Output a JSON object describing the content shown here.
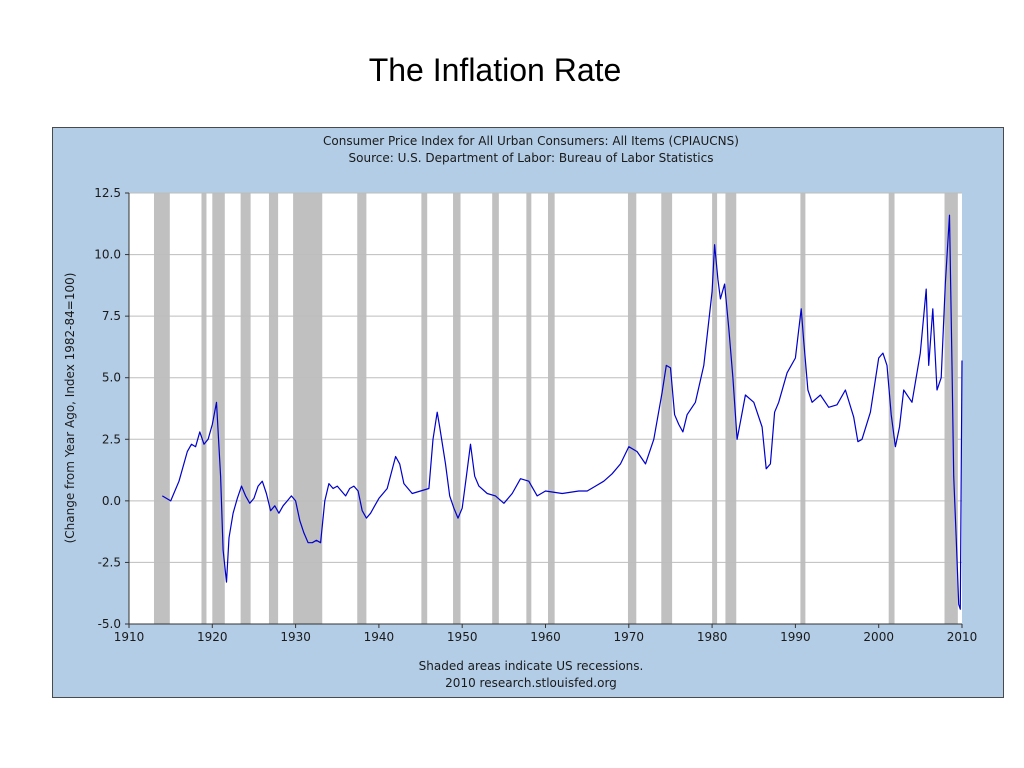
{
  "slide": {
    "title": "The Inflation Rate"
  },
  "chart_data": {
    "type": "line",
    "title": "Consumer Price Index for All Urban Consumers: All Items (CPIAUCNS)",
    "subtitle": "Source: U.S. Department of Labor: Bureau of Labor Statistics",
    "xlabel": "",
    "ylabel": "(Change from Year Ago, Index 1982-84=100)",
    "xlim": [
      1910,
      2010
    ],
    "ylim": [
      -5.0,
      12.5
    ],
    "x_ticks": [
      "1910",
      "1920",
      "1930",
      "1940",
      "1950",
      "1960",
      "1970",
      "1980",
      "1990",
      "2000",
      "2010"
    ],
    "y_ticks": [
      "-5.0",
      "-2.5",
      "0.0",
      "2.5",
      "5.0",
      "7.5",
      "10.0",
      "12.5"
    ],
    "grid": "horizontal",
    "footer_lines": [
      "Shaded areas indicate US recessions.",
      "2010 research.stlouisfed.org"
    ],
    "recessions": [
      [
        1913.0,
        1914.9
      ],
      [
        1918.7,
        1919.3
      ],
      [
        1920.0,
        1921.5
      ],
      [
        1923.4,
        1924.6
      ],
      [
        1926.8,
        1927.9
      ],
      [
        1929.7,
        1933.2
      ],
      [
        1937.4,
        1938.5
      ],
      [
        1945.1,
        1945.8
      ],
      [
        1948.9,
        1949.8
      ],
      [
        1953.6,
        1954.4
      ],
      [
        1957.7,
        1958.3
      ],
      [
        1960.3,
        1961.1
      ],
      [
        1969.9,
        1970.9
      ],
      [
        1973.9,
        1975.2
      ],
      [
        1980.0,
        1980.6
      ],
      [
        1981.6,
        1982.9
      ],
      [
        1990.6,
        1991.2
      ],
      [
        2001.2,
        2001.9
      ],
      [
        2007.9,
        2009.5
      ]
    ],
    "series": [
      {
        "color": "#0000cc",
        "x": [
          1914.0,
          1915.0,
          1916.0,
          1917.0,
          1917.5,
          1918.0,
          1918.5,
          1919.0,
          1919.5,
          1920.0,
          1920.5,
          1921.0,
          1921.3,
          1921.7,
          1922.0,
          1922.5,
          1923.0,
          1923.5,
          1924.0,
          1924.5,
          1925.0,
          1925.5,
          1926.0,
          1926.5,
          1927.0,
          1927.5,
          1928.0,
          1928.5,
          1929.0,
          1929.5,
          1930.0,
          1930.5,
          1931.0,
          1931.5,
          1932.0,
          1932.5,
          1933.0,
          1933.5,
          1934.0,
          1934.5,
          1935.0,
          1935.5,
          1936.0,
          1936.5,
          1937.0,
          1937.5,
          1938.0,
          1938.5,
          1939.0,
          1939.5,
          1940.0,
          1941.0,
          1942.0,
          1942.5,
          1943.0,
          1944.0,
          1945.0,
          1946.0,
          1946.5,
          1947.0,
          1947.3,
          1948.0,
          1948.5,
          1949.0,
          1949.5,
          1950.0,
          1950.5,
          1951.0,
          1951.5,
          1952.0,
          1953.0,
          1954.0,
          1955.0,
          1956.0,
          1957.0,
          1958.0,
          1959.0,
          1960.0,
          1962.0,
          1964.0,
          1965.0,
          1966.0,
          1967.0,
          1968.0,
          1969.0,
          1970.0,
          1971.0,
          1972.0,
          1973.0,
          1974.0,
          1974.5,
          1975.0,
          1975.5,
          1976.0,
          1976.5,
          1977.0,
          1978.0,
          1979.0,
          1980.0,
          1980.3,
          1980.7,
          1981.0,
          1981.5,
          1982.0,
          1982.5,
          1983.0,
          1983.5,
          1984.0,
          1985.0,
          1986.0,
          1986.5,
          1987.0,
          1987.5,
          1988.0,
          1989.0,
          1990.0,
          1990.7,
          1991.0,
          1991.5,
          1992.0,
          1993.0,
          1994.0,
          1995.0,
          1996.0,
          1997.0,
          1997.5,
          1998.0,
          1999.0,
          2000.0,
          2000.5,
          2001.0,
          2001.5,
          2002.0,
          2002.5,
          2003.0,
          2004.0,
          2005.0,
          2005.7,
          2006.0,
          2006.5,
          2007.0,
          2007.5,
          2008.0,
          2008.5,
          2008.8,
          2009.0,
          2009.3,
          2009.6,
          2009.8,
          2010.0
        ],
        "y": [
          0.2,
          0.0,
          0.8,
          2.0,
          2.3,
          2.2,
          2.8,
          2.3,
          2.5,
          3.1,
          4.0,
          1.0,
          -2.0,
          -3.3,
          -1.5,
          -0.5,
          0.1,
          0.6,
          0.2,
          -0.1,
          0.1,
          0.6,
          0.8,
          0.3,
          -0.4,
          -0.2,
          -0.5,
          -0.2,
          0.0,
          0.2,
          0.0,
          -0.8,
          -1.3,
          -1.7,
          -1.7,
          -1.6,
          -1.7,
          0.0,
          0.7,
          0.5,
          0.6,
          0.4,
          0.2,
          0.5,
          0.6,
          0.4,
          -0.4,
          -0.7,
          -0.5,
          -0.2,
          0.1,
          0.5,
          1.8,
          1.5,
          0.7,
          0.3,
          0.4,
          0.5,
          2.5,
          3.6,
          3.0,
          1.5,
          0.2,
          -0.3,
          -0.7,
          -0.3,
          1.0,
          2.3,
          1.0,
          0.6,
          0.3,
          0.2,
          -0.1,
          0.3,
          0.9,
          0.8,
          0.2,
          0.4,
          0.3,
          0.4,
          0.4,
          0.6,
          0.8,
          1.1,
          1.5,
          2.2,
          2.0,
          1.5,
          2.5,
          4.4,
          5.5,
          5.4,
          3.5,
          3.1,
          2.8,
          3.5,
          4.0,
          5.5,
          8.5,
          10.4,
          9.0,
          8.2,
          8.8,
          7.0,
          5.0,
          2.5,
          3.4,
          4.3,
          4.0,
          3.0,
          1.3,
          1.5,
          3.6,
          4.0,
          5.2,
          5.8,
          7.8,
          6.5,
          4.5,
          4.0,
          4.3,
          3.8,
          3.9,
          4.5,
          3.4,
          2.4,
          2.5,
          3.6,
          5.8,
          6.0,
          5.5,
          3.5,
          2.2,
          3.0,
          4.5,
          4.0,
          6.0,
          8.6,
          5.5,
          7.8,
          4.5,
          5.0,
          8.8,
          11.6,
          5.5,
          1.0,
          -1.5,
          -4.2,
          -4.4,
          5.7
        ]
      }
    ]
  }
}
